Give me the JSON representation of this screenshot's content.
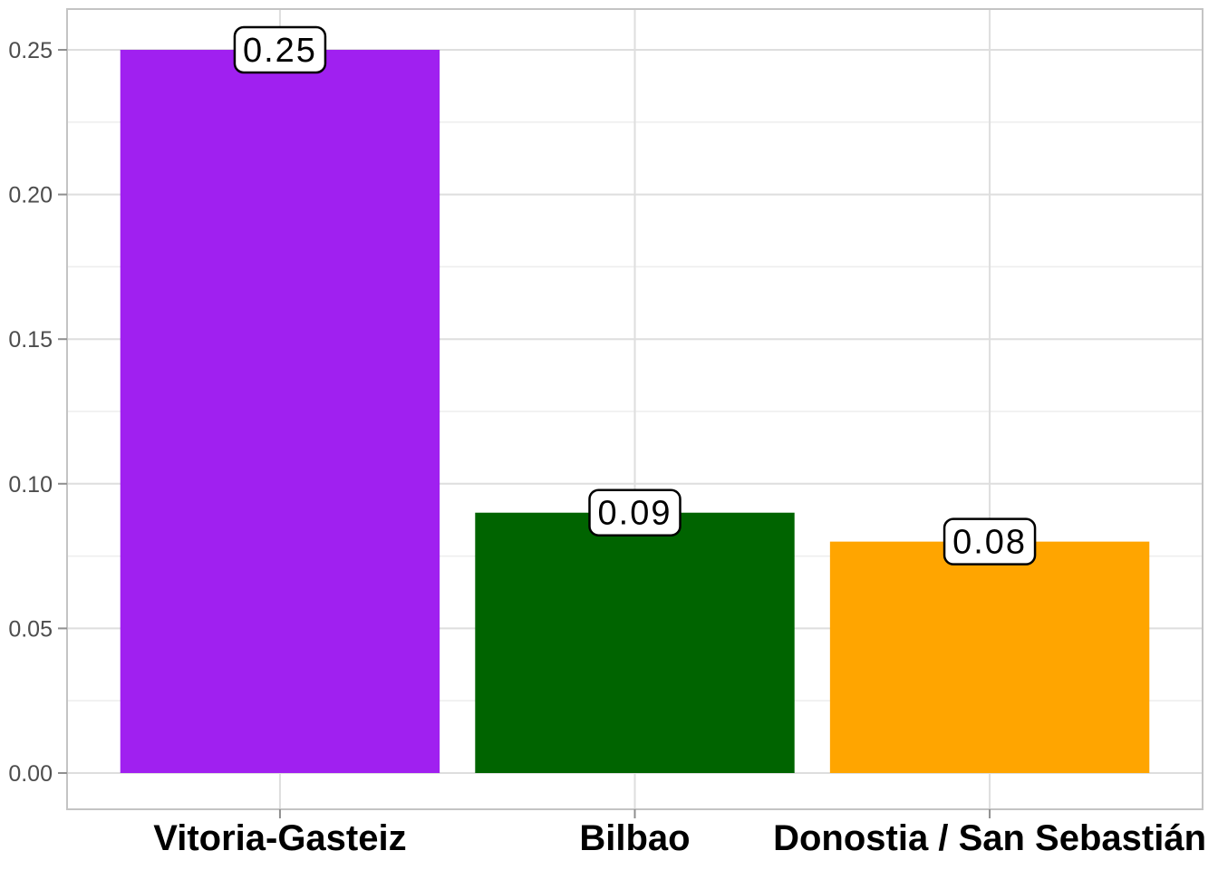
{
  "chart_data": {
    "type": "bar",
    "categories": [
      "Vitoria-Gasteiz",
      "Bilbao",
      "Donostia / San Sebastián"
    ],
    "values": [
      0.25,
      0.09,
      0.08
    ],
    "value_labels": [
      "0.25",
      "0.09",
      "0.08"
    ],
    "bar_colors": [
      "#A020F0",
      "#006400",
      "#FFA500"
    ],
    "title": "",
    "xlabel": "",
    "ylabel": "",
    "ylim": [
      0,
      0.25
    ],
    "y_ticks": [
      0,
      0.05,
      0.1,
      0.15,
      0.2,
      0.25
    ],
    "y_tick_labels": [
      "0.00",
      "0.05",
      "0.10",
      "0.15",
      "0.20",
      "0.25"
    ],
    "y_minor_ticks": [
      0.025,
      0.075,
      0.125,
      0.175,
      0.225
    ],
    "grid": "on",
    "legend": "none"
  },
  "style": {
    "background_color": "#FFFFFF",
    "panel_border_color": "#C4C4C4",
    "grid_major_color": "#DEDEDE",
    "grid_minor_color": "#EDEDED",
    "axis_tick_color": "#8F8F8F",
    "y_tick_label_color": "#4D4D4D",
    "x_tick_label_color": "#000000",
    "value_label_text_color": "#000000",
    "value_label_box_fill": "#FFFFFF",
    "value_label_box_border": "#000000"
  }
}
